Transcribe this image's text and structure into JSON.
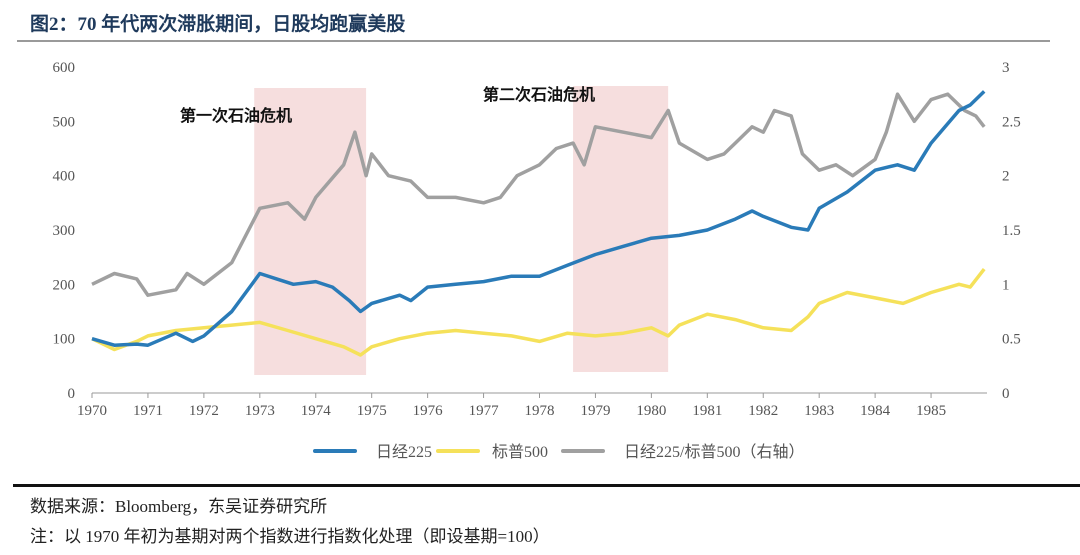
{
  "title": "图2：70 年代两次滞胀期间，日股均跑赢美股",
  "footer": {
    "source": "数据来源：Bloomberg，东吴证券研究所",
    "note": "注：以 1970 年初为基期对两个指数进行指数化处理（即设基期=100）"
  },
  "chart_data": {
    "type": "line",
    "title": "",
    "xlim": [
      1970,
      1986
    ],
    "ylim_left": [
      0,
      600
    ],
    "ylim_right": [
      0,
      3
    ],
    "x_ticks": [
      "1970",
      "1971",
      "1972",
      "1973",
      "1974",
      "1975",
      "1976",
      "1977",
      "1978",
      "1979",
      "1980",
      "1981",
      "1982",
      "1983",
      "1984",
      "1985"
    ],
    "y_ticks_left": [
      "0",
      "100",
      "200",
      "300",
      "400",
      "500",
      "600"
    ],
    "y_ticks_right": [
      "0",
      "0.5",
      "1",
      "1.5",
      "2",
      "2.5",
      "3"
    ],
    "grid": false,
    "legend_placement": "bottom",
    "shaded_periods": [
      {
        "label": "第一次石油危机",
        "start": 1972.9,
        "end": 1974.9
      },
      {
        "label": "第二次石油危机",
        "start": 1978.6,
        "end": 1980.3
      }
    ],
    "series": [
      {
        "name": "日经225",
        "axis": "left",
        "color": "#2a7bb8",
        "points": [
          [
            1970,
            100
          ],
          [
            1970.4,
            88
          ],
          [
            1970.8,
            90
          ],
          [
            1971,
            88
          ],
          [
            1971.5,
            110
          ],
          [
            1971.8,
            95
          ],
          [
            1972,
            105
          ],
          [
            1972.5,
            150
          ],
          [
            1973,
            220
          ],
          [
            1973.3,
            210
          ],
          [
            1973.6,
            200
          ],
          [
            1974,
            205
          ],
          [
            1974.3,
            195
          ],
          [
            1974.6,
            170
          ],
          [
            1974.8,
            150
          ],
          [
            1975,
            165
          ],
          [
            1975.5,
            180
          ],
          [
            1975.7,
            170
          ],
          [
            1976,
            195
          ],
          [
            1976.5,
            200
          ],
          [
            1977,
            205
          ],
          [
            1977.5,
            215
          ],
          [
            1978,
            215
          ],
          [
            1978.5,
            235
          ],
          [
            1979,
            255
          ],
          [
            1979.5,
            270
          ],
          [
            1980,
            285
          ],
          [
            1980.5,
            290
          ],
          [
            1981,
            300
          ],
          [
            1981.5,
            320
          ],
          [
            1981.8,
            335
          ],
          [
            1982,
            325
          ],
          [
            1982.5,
            305
          ],
          [
            1982.8,
            300
          ],
          [
            1983,
            340
          ],
          [
            1983.5,
            370
          ],
          [
            1984,
            410
          ],
          [
            1984.4,
            420
          ],
          [
            1984.7,
            410
          ],
          [
            1985,
            460
          ],
          [
            1985.5,
            520
          ],
          [
            1985.7,
            530
          ],
          [
            1985.95,
            555
          ]
        ]
      },
      {
        "name": "标普500",
        "axis": "left",
        "color": "#f5e15a",
        "points": [
          [
            1970,
            100
          ],
          [
            1970.4,
            80
          ],
          [
            1970.8,
            95
          ],
          [
            1971,
            105
          ],
          [
            1971.5,
            115
          ],
          [
            1972,
            120
          ],
          [
            1972.5,
            125
          ],
          [
            1973,
            130
          ],
          [
            1973.5,
            115
          ],
          [
            1974,
            100
          ],
          [
            1974.5,
            85
          ],
          [
            1974.8,
            70
          ],
          [
            1975,
            85
          ],
          [
            1975.5,
            100
          ],
          [
            1976,
            110
          ],
          [
            1976.5,
            115
          ],
          [
            1977,
            110
          ],
          [
            1977.5,
            105
          ],
          [
            1978,
            95
          ],
          [
            1978.5,
            110
          ],
          [
            1979,
            105
          ],
          [
            1979.5,
            110
          ],
          [
            1980,
            120
          ],
          [
            1980.3,
            105
          ],
          [
            1980.5,
            125
          ],
          [
            1981,
            145
          ],
          [
            1981.5,
            135
          ],
          [
            1982,
            120
          ],
          [
            1982.5,
            115
          ],
          [
            1982.8,
            140
          ],
          [
            1983,
            165
          ],
          [
            1983.5,
            185
          ],
          [
            1984,
            175
          ],
          [
            1984.5,
            165
          ],
          [
            1985,
            185
          ],
          [
            1985.5,
            200
          ],
          [
            1985.7,
            195
          ],
          [
            1985.95,
            228
          ]
        ]
      },
      {
        "name": "日经225/标普500（右轴）",
        "axis": "right",
        "color": "#a0a0a0",
        "points": [
          [
            1970,
            1.0
          ],
          [
            1970.4,
            1.1
          ],
          [
            1970.8,
            1.05
          ],
          [
            1971,
            0.9
          ],
          [
            1971.5,
            0.95
          ],
          [
            1971.7,
            1.1
          ],
          [
            1972,
            1.0
          ],
          [
            1972.5,
            1.2
          ],
          [
            1972.8,
            1.5
          ],
          [
            1973,
            1.7
          ],
          [
            1973.5,
            1.75
          ],
          [
            1973.8,
            1.6
          ],
          [
            1974,
            1.8
          ],
          [
            1974.5,
            2.1
          ],
          [
            1974.7,
            2.4
          ],
          [
            1974.9,
            2.0
          ],
          [
            1975,
            2.2
          ],
          [
            1975.3,
            2.0
          ],
          [
            1975.7,
            1.95
          ],
          [
            1976,
            1.8
          ],
          [
            1976.5,
            1.8
          ],
          [
            1977,
            1.75
          ],
          [
            1977.3,
            1.8
          ],
          [
            1977.6,
            2.0
          ],
          [
            1978,
            2.1
          ],
          [
            1978.3,
            2.25
          ],
          [
            1978.6,
            2.3
          ],
          [
            1978.8,
            2.1
          ],
          [
            1979,
            2.45
          ],
          [
            1979.5,
            2.4
          ],
          [
            1980,
            2.35
          ],
          [
            1980.3,
            2.6
          ],
          [
            1980.5,
            2.3
          ],
          [
            1981,
            2.15
          ],
          [
            1981.3,
            2.2
          ],
          [
            1981.5,
            2.3
          ],
          [
            1981.8,
            2.45
          ],
          [
            1982,
            2.4
          ],
          [
            1982.2,
            2.6
          ],
          [
            1982.5,
            2.55
          ],
          [
            1982.7,
            2.2
          ],
          [
            1983,
            2.05
          ],
          [
            1983.3,
            2.1
          ],
          [
            1983.6,
            2.0
          ],
          [
            1984,
            2.15
          ],
          [
            1984.2,
            2.4
          ],
          [
            1984.4,
            2.75
          ],
          [
            1984.7,
            2.5
          ],
          [
            1985,
            2.7
          ],
          [
            1985.3,
            2.75
          ],
          [
            1985.6,
            2.6
          ],
          [
            1985.8,
            2.55
          ],
          [
            1985.95,
            2.45
          ]
        ]
      }
    ]
  }
}
